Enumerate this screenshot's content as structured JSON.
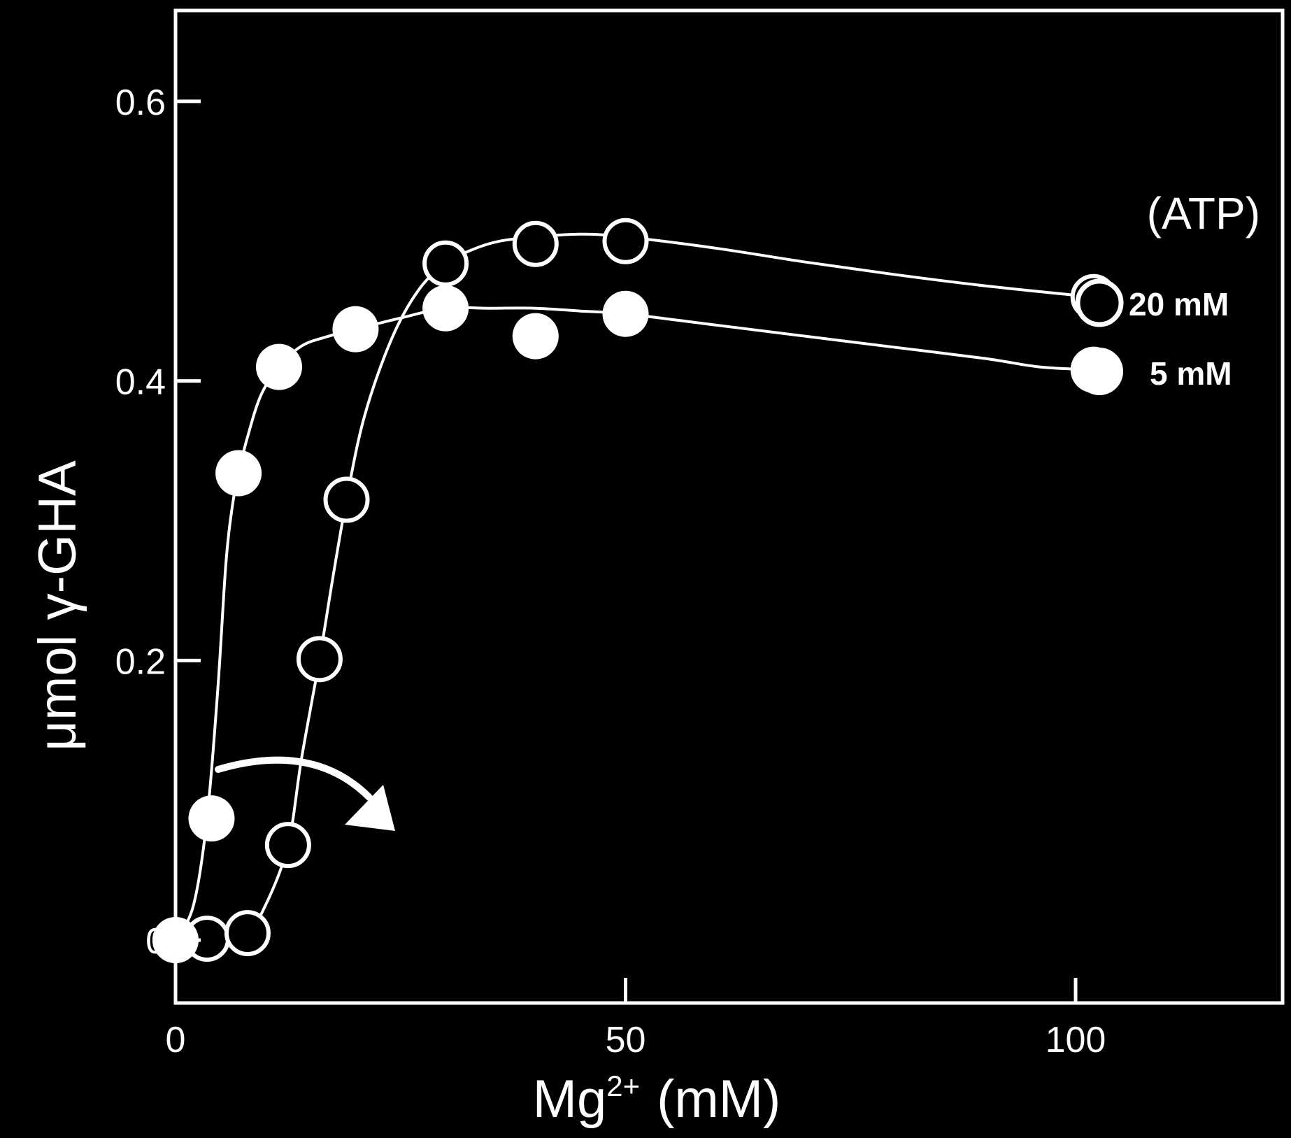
{
  "chart_data": {
    "type": "scatter",
    "xlabel": {
      "base": "Mg",
      "sup": "2+",
      "unit": "(mM)"
    },
    "ylabel": "μmol γ-GHA",
    "xlim": [
      0,
      123
    ],
    "ylim": [
      -0.045,
      0.665
    ],
    "x_ticks": [
      {
        "value": 0,
        "label": "0"
      },
      {
        "value": 50,
        "label": "50"
      },
      {
        "value": 100,
        "label": "100"
      }
    ],
    "y_ticks": [
      {
        "value": 0,
        "label": "0"
      },
      {
        "value": 0.2,
        "label": "0.2"
      },
      {
        "value": 0.4,
        "label": "0.4"
      },
      {
        "value": 0.6,
        "label": "0.6"
      }
    ],
    "grid": false,
    "legend": {
      "title": "(ATP)",
      "position": "right",
      "entries": [
        {
          "label": "20 mM",
          "marker": "open-circle"
        },
        {
          "label": "5 mM",
          "marker": "filled-circle"
        }
      ]
    },
    "annotation": "arrow pointing right from the 5 mM curve to the 20 mM curve",
    "series": [
      {
        "name": "20 mM",
        "marker": "open",
        "x": [
          0,
          3.5,
          8,
          12.5,
          16,
          19,
          30,
          40,
          50,
          102
        ],
        "y": [
          0,
          0.001,
          0.005,
          0.068,
          0.201,
          0.315,
          0.484,
          0.498,
          0.5,
          0.46
        ],
        "curve_x": [
          0,
          3,
          8,
          10,
          12.5,
          14,
          16,
          17.5,
          19,
          21,
          24,
          27,
          30,
          33,
          36,
          40,
          45,
          50,
          60,
          70,
          80,
          90,
          102
        ],
        "curve_y": [
          0,
          0.001,
          0.008,
          0.025,
          0.068,
          0.13,
          0.201,
          0.26,
          0.315,
          0.375,
          0.43,
          0.465,
          0.484,
          0.494,
          0.5,
          0.503,
          0.505,
          0.503,
          0.495,
          0.485,
          0.476,
          0.468,
          0.46
        ]
      },
      {
        "name": "5 mM",
        "marker": "filled",
        "x": [
          0,
          4,
          7,
          11.5,
          20,
          30,
          40,
          50,
          102
        ],
        "y": [
          0,
          0.087,
          0.334,
          0.41,
          0.437,
          0.452,
          0.432,
          0.448,
          0.408
        ],
        "curve_x": [
          0,
          2,
          3.5,
          4.7,
          5.6,
          6.3,
          7,
          8,
          9.5,
          11.5,
          14,
          17,
          20,
          25,
          30,
          35,
          40,
          45,
          50,
          60,
          70,
          80,
          90,
          96,
          102
        ],
        "curve_y": [
          0,
          0.025,
          0.087,
          0.18,
          0.27,
          0.31,
          0.334,
          0.36,
          0.39,
          0.41,
          0.425,
          0.432,
          0.437,
          0.445,
          0.452,
          0.452,
          0.452,
          0.45,
          0.448,
          0.44,
          0.432,
          0.424,
          0.416,
          0.41,
          0.408
        ]
      }
    ]
  }
}
